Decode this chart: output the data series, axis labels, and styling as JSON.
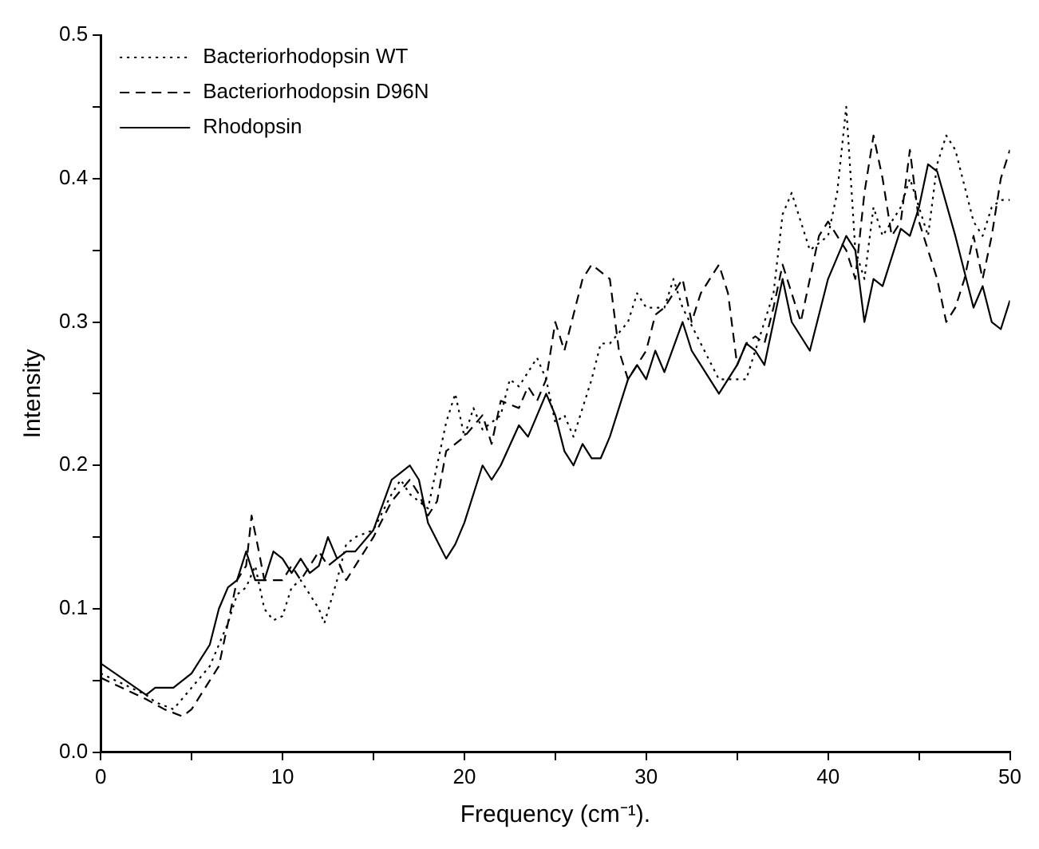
{
  "chart_data": {
    "type": "line",
    "xlabel": "Frequency (cm⁻¹).",
    "ylabel": "Intensity",
    "xlim": [
      0,
      50
    ],
    "ylim": [
      0,
      0.5
    ],
    "xticks": [
      0,
      {
        "value": 5,
        "label": null
      },
      10,
      {
        "value": 15,
        "label": null
      },
      20,
      {
        "value": 25,
        "label": null
      },
      30,
      {
        "value": 35,
        "label": null
      },
      40,
      {
        "value": 45,
        "label": null
      },
      50
    ],
    "yticks": [
      {
        "value": 0,
        "label": "0.0"
      },
      {
        "value": 0.05,
        "label": null
      },
      {
        "value": 0.1,
        "label": "0.1"
      },
      {
        "value": 0.15,
        "label": null
      },
      {
        "value": 0.2,
        "label": "0.2"
      },
      {
        "value": 0.25,
        "label": null
      },
      {
        "value": 0.3,
        "label": "0.3"
      },
      {
        "value": 0.35,
        "label": null
      },
      {
        "value": 0.4,
        "label": "0.4"
      },
      {
        "value": 0.45,
        "label": null
      },
      {
        "value": 0.5,
        "label": "0.5"
      }
    ],
    "grid": false,
    "legend": "top left",
    "marker": "none",
    "series": [
      {
        "name": "Bacteriorhodopsin WT",
        "color": "#000000",
        "line_style": "dotted",
        "x": [
          0,
          2.5,
          3,
          4,
          5,
          6,
          6.5,
          7,
          7.5,
          8,
          8.5,
          9,
          9.5,
          10,
          10.5,
          11,
          12,
          12.3,
          13,
          13.5,
          14,
          15,
          16,
          16.5,
          17,
          18,
          18.5,
          19,
          19.5,
          20,
          20.5,
          21,
          22,
          22.5,
          23,
          24,
          24.5,
          25,
          25.5,
          26,
          27,
          27.5,
          28,
          29,
          29.5,
          30,
          31,
          31.5,
          32,
          33,
          34,
          35,
          35.5,
          36,
          37,
          37.5,
          38,
          38.5,
          39,
          40,
          40.5,
          41,
          41.5,
          42,
          42.5,
          43,
          44,
          44.5,
          45,
          45.5,
          46,
          46.5,
          47,
          48,
          48.5,
          49,
          49.5,
          50
        ],
        "values": [
          0.055,
          0.04,
          0.035,
          0.03,
          0.045,
          0.06,
          0.075,
          0.09,
          0.11,
          0.115,
          0.13,
          0.1,
          0.092,
          0.095,
          0.115,
          0.12,
          0.1,
          0.09,
          0.12,
          0.145,
          0.15,
          0.155,
          0.18,
          0.19,
          0.18,
          0.17,
          0.2,
          0.23,
          0.25,
          0.22,
          0.24,
          0.225,
          0.235,
          0.26,
          0.255,
          0.275,
          0.26,
          0.23,
          0.235,
          0.22,
          0.26,
          0.285,
          0.285,
          0.3,
          0.32,
          0.31,
          0.31,
          0.33,
          0.31,
          0.285,
          0.26,
          0.26,
          0.26,
          0.28,
          0.32,
          0.375,
          0.39,
          0.37,
          0.35,
          0.36,
          0.39,
          0.45,
          0.35,
          0.33,
          0.38,
          0.36,
          0.38,
          0.4,
          0.38,
          0.36,
          0.41,
          0.43,
          0.42,
          0.37,
          0.36,
          0.38,
          0.385,
          0.385
        ]
      },
      {
        "name": "Bacteriorhodopsin D96N",
        "color": "#000000",
        "line_style": "dashed",
        "x": [
          0,
          2.5,
          3.5,
          4.5,
          5,
          6,
          6.5,
          7,
          7.5,
          8,
          8.3,
          8.7,
          9,
          10,
          10.5,
          11,
          12,
          12.5,
          13,
          13.5,
          14,
          15,
          16,
          17,
          17.5,
          18,
          18.5,
          19,
          19.5,
          20,
          21,
          21.5,
          22,
          23,
          23.5,
          24,
          24.5,
          25,
          25.5,
          26,
          26.5,
          27,
          27.5,
          28,
          28.5,
          29,
          30,
          30.5,
          31,
          32,
          32.5,
          33,
          34,
          34.5,
          35,
          35.5,
          36,
          36.5,
          37,
          37.5,
          38,
          38.5,
          39,
          39.5,
          40,
          40.5,
          41,
          41.5,
          42,
          42.5,
          43,
          43.5,
          44,
          44.5,
          45,
          45.5,
          46,
          46.5,
          47,
          47.5,
          48,
          48.5,
          49,
          49.5,
          50
        ],
        "values": [
          0.052,
          0.037,
          0.03,
          0.025,
          0.03,
          0.05,
          0.06,
          0.09,
          0.12,
          0.13,
          0.165,
          0.14,
          0.12,
          0.12,
          0.13,
          0.12,
          0.14,
          0.13,
          0.135,
          0.12,
          0.13,
          0.15,
          0.175,
          0.19,
          0.18,
          0.165,
          0.175,
          0.21,
          0.215,
          0.22,
          0.235,
          0.215,
          0.245,
          0.24,
          0.255,
          0.245,
          0.26,
          0.3,
          0.28,
          0.305,
          0.33,
          0.34,
          0.335,
          0.33,
          0.28,
          0.26,
          0.28,
          0.305,
          0.31,
          0.33,
          0.3,
          0.32,
          0.34,
          0.32,
          0.27,
          0.285,
          0.29,
          0.285,
          0.31,
          0.34,
          0.32,
          0.3,
          0.33,
          0.36,
          0.37,
          0.36,
          0.35,
          0.33,
          0.39,
          0.43,
          0.4,
          0.36,
          0.37,
          0.42,
          0.37,
          0.35,
          0.33,
          0.3,
          0.31,
          0.33,
          0.36,
          0.33,
          0.36,
          0.4,
          0.42
        ]
      },
      {
        "name": "Rhodopsin",
        "color": "#000000",
        "line_style": "solid",
        "x": [
          0,
          2.5,
          3,
          4,
          5,
          6,
          6.5,
          7,
          7.5,
          8,
          8.5,
          9,
          9.5,
          10,
          10.5,
          11,
          11.5,
          12,
          12.5,
          13,
          13.5,
          14,
          15,
          16,
          16.5,
          17,
          17.5,
          18,
          19,
          19.5,
          20,
          21,
          21.5,
          22,
          23,
          23.5,
          24.5,
          25,
          25.5,
          26,
          26.5,
          27,
          27.5,
          28,
          29,
          29.5,
          30,
          30.5,
          31,
          32,
          32.5,
          33,
          34,
          35,
          35.5,
          36,
          36.5,
          37,
          37.5,
          38,
          39,
          40,
          41,
          41.5,
          42,
          42.5,
          43,
          44,
          44.5,
          45,
          45.5,
          46,
          47,
          48,
          48.5,
          49,
          49.5,
          50
        ],
        "values": [
          0.062,
          0.04,
          0.045,
          0.045,
          0.055,
          0.075,
          0.1,
          0.115,
          0.12,
          0.14,
          0.12,
          0.12,
          0.14,
          0.135,
          0.125,
          0.135,
          0.125,
          0.13,
          0.15,
          0.135,
          0.14,
          0.14,
          0.155,
          0.19,
          0.195,
          0.2,
          0.19,
          0.16,
          0.135,
          0.145,
          0.16,
          0.2,
          0.19,
          0.2,
          0.228,
          0.22,
          0.25,
          0.235,
          0.21,
          0.2,
          0.215,
          0.205,
          0.205,
          0.22,
          0.26,
          0.27,
          0.26,
          0.28,
          0.265,
          0.3,
          0.28,
          0.27,
          0.25,
          0.27,
          0.285,
          0.28,
          0.27,
          0.3,
          0.33,
          0.3,
          0.28,
          0.33,
          0.36,
          0.35,
          0.3,
          0.33,
          0.325,
          0.365,
          0.36,
          0.38,
          0.41,
          0.405,
          0.36,
          0.31,
          0.325,
          0.3,
          0.295,
          0.315
        ]
      }
    ]
  }
}
